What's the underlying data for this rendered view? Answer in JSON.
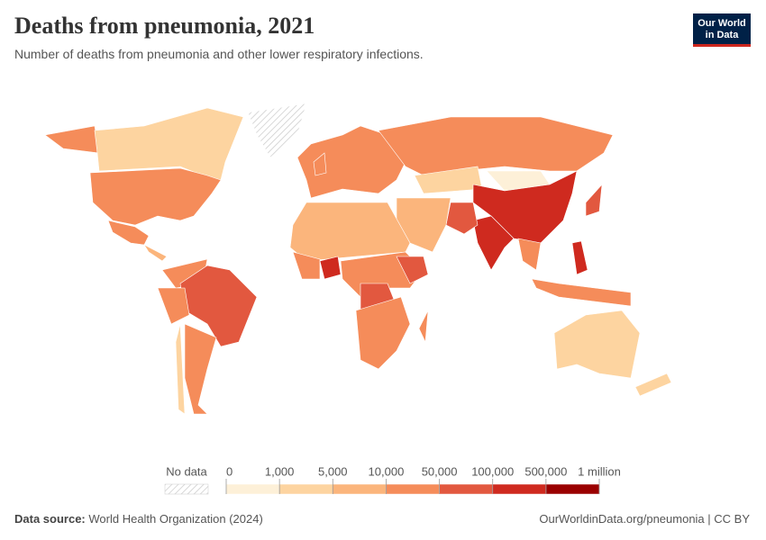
{
  "header": {
    "title": "Deaths from pneumonia, 2021",
    "subtitle": "Number of deaths from pneumonia and other lower respiratory infections.",
    "logo": [
      "Our World",
      "in Data"
    ]
  },
  "legend": {
    "no_data": "No data",
    "ticks": [
      0,
      {
        "value": 1000,
        "label": "1,000"
      },
      {
        "value": 5000,
        "label": "5,000"
      },
      {
        "value": 10000,
        "label": "10,000"
      },
      {
        "value": 50000,
        "label": "50,000"
      },
      {
        "value": 100000,
        "label": "100,000"
      },
      {
        "value": 500000,
        "label": "500,000"
      },
      {
        "value": 1000000,
        "label": "1 million"
      }
    ],
    "colors": [
      "#fdf0d8",
      "#fdd4a0",
      "#fbb57c",
      "#f58c5a",
      "#e2583f",
      "#cf2a1f",
      "#9a0000"
    ]
  },
  "footer": {
    "source_label": "Data source:",
    "source": "World Health Organization (2024)",
    "link": "OurWorldinData.org/pneumonia | CC BY"
  }
}
